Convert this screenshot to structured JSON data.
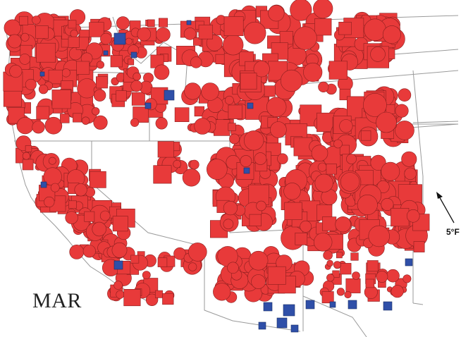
{
  "map": {
    "month_label": "MAR",
    "callout_label": "5°F",
    "colors": {
      "warm": "#e83a3a",
      "cool": "#2f4fa8",
      "marker_stroke": "#8a1f1f",
      "cool_stroke": "#1c2f66",
      "borders": "#9a9a9a",
      "background": "#ffffff"
    },
    "legend": {
      "callout_arrow_icon": "arrow-icon"
    }
  }
}
